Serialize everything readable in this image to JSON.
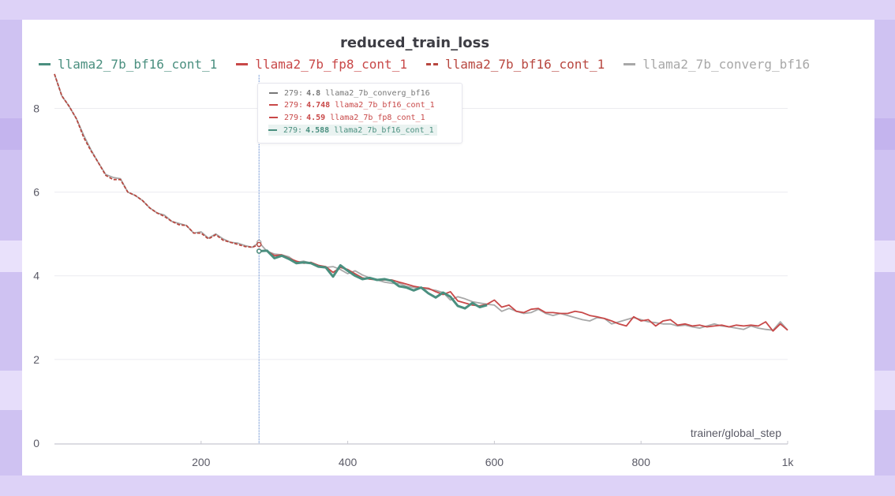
{
  "colors": {
    "teal": "#4a8f7f",
    "red": "#c84848",
    "red_dashed": "#b8473f",
    "gray": "#a8a8a8",
    "tooltip_gray": "#777777",
    "grid": "#ececf0",
    "axis_text": "#5a5a66"
  },
  "chart_data": {
    "type": "line",
    "title": "reduced_train_loss",
    "xlabel": "trainer/global_step",
    "ylabel": "",
    "xlim": [
      0,
      1000
    ],
    "ylim": [
      0,
      8.8
    ],
    "x_ticks": [
      200,
      400,
      600,
      800,
      1000
    ],
    "x_tick_labels": [
      "200",
      "400",
      "600",
      "800",
      "1k"
    ],
    "y_ticks": [
      0,
      2,
      4,
      6,
      8
    ],
    "y_tick_labels": [
      "0",
      "2",
      "4",
      "6",
      "8"
    ],
    "hover_step": 279,
    "series": [
      {
        "name": "llama2_7b_converg_bf16",
        "style": "solid",
        "color": "#a8a8a8",
        "x": [
          0,
          10,
          20,
          30,
          40,
          50,
          60,
          70,
          80,
          90,
          100,
          110,
          120,
          130,
          140,
          150,
          160,
          170,
          180,
          190,
          200,
          210,
          220,
          230,
          240,
          250,
          260,
          270,
          279,
          290,
          300,
          310,
          320,
          330,
          340,
          350,
          360,
          370,
          380,
          390,
          400,
          410,
          420,
          430,
          440,
          450,
          460,
          470,
          480,
          490,
          500,
          510,
          520,
          530,
          540,
          550,
          560,
          570,
          580,
          590,
          600,
          610,
          620,
          630,
          640,
          650,
          660,
          670,
          680,
          690,
          700,
          710,
          720,
          730,
          740,
          750,
          760,
          770,
          780,
          790,
          800,
          810,
          820,
          830,
          840,
          850,
          860,
          870,
          880,
          890,
          900,
          910,
          920,
          930,
          940,
          950,
          960,
          970,
          980,
          990,
          1000
        ],
        "values": [
          8.82,
          8.3,
          8.05,
          7.75,
          7.35,
          7.0,
          6.7,
          6.42,
          6.35,
          6.32,
          6.0,
          5.92,
          5.8,
          5.62,
          5.5,
          5.45,
          5.3,
          5.25,
          5.2,
          5.02,
          5.05,
          4.9,
          5.0,
          4.88,
          4.8,
          4.78,
          4.72,
          4.68,
          4.8,
          4.58,
          4.52,
          4.5,
          4.45,
          4.32,
          4.35,
          4.3,
          4.25,
          4.2,
          4.22,
          4.15,
          4.05,
          4.12,
          4.02,
          3.95,
          3.9,
          3.85,
          3.82,
          3.82,
          3.75,
          3.72,
          3.7,
          3.68,
          3.65,
          3.6,
          3.42,
          3.5,
          3.45,
          3.38,
          3.35,
          3.32,
          3.3,
          3.15,
          3.22,
          3.15,
          3.1,
          3.12,
          3.2,
          3.1,
          3.05,
          3.1,
          3.05,
          3.0,
          2.95,
          2.92,
          3.0,
          2.98,
          2.85,
          2.9,
          2.95,
          3.0,
          2.95,
          2.9,
          2.88,
          2.85,
          2.85,
          2.8,
          2.82,
          2.78,
          2.75,
          2.8,
          2.85,
          2.8,
          2.78,
          2.75,
          2.72,
          2.8,
          2.75,
          2.72,
          2.7,
          2.9,
          2.7
        ]
      },
      {
        "name": "llama2_7b_fp8_cont_1",
        "style": "solid",
        "color": "#c84848",
        "x": [
          279,
          290,
          300,
          310,
          320,
          330,
          340,
          350,
          360,
          370,
          380,
          390,
          400,
          410,
          420,
          430,
          440,
          450,
          460,
          470,
          480,
          490,
          500,
          510,
          520,
          530,
          540,
          550,
          560,
          570,
          580,
          590,
          600,
          610,
          620,
          630,
          640,
          650,
          660,
          670,
          680,
          690,
          700,
          710,
          720,
          730,
          740,
          750,
          760,
          770,
          780,
          790,
          800,
          810,
          820,
          830,
          840,
          850,
          860,
          870,
          880,
          890,
          900,
          910,
          920,
          930,
          940,
          950,
          960,
          970,
          980,
          990,
          1000
        ],
        "values": [
          4.59,
          4.6,
          4.48,
          4.5,
          4.42,
          4.35,
          4.3,
          4.32,
          4.25,
          4.22,
          4.08,
          4.2,
          4.15,
          4.05,
          3.95,
          3.92,
          3.9,
          3.9,
          3.9,
          3.85,
          3.8,
          3.75,
          3.72,
          3.7,
          3.62,
          3.55,
          3.62,
          3.4,
          3.35,
          3.3,
          3.28,
          3.32,
          3.42,
          3.25,
          3.3,
          3.15,
          3.12,
          3.2,
          3.22,
          3.12,
          3.12,
          3.1,
          3.1,
          3.15,
          3.12,
          3.05,
          3.02,
          2.98,
          2.92,
          2.85,
          2.8,
          3.02,
          2.92,
          2.95,
          2.8,
          2.92,
          2.95,
          2.82,
          2.85,
          2.8,
          2.82,
          2.78,
          2.8,
          2.82,
          2.78,
          2.82,
          2.8,
          2.82,
          2.8,
          2.9,
          2.68,
          2.85,
          2.7
        ]
      },
      {
        "name": "llama2_7b_bf16_cont_1",
        "style": "dashed",
        "color": "#b8473f",
        "x": [
          0,
          10,
          20,
          30,
          40,
          50,
          60,
          70,
          80,
          90,
          100,
          110,
          120,
          130,
          140,
          150,
          160,
          170,
          180,
          190,
          200,
          210,
          220,
          230,
          240,
          250,
          260,
          270,
          279
        ],
        "values": [
          8.82,
          8.3,
          8.05,
          7.75,
          7.3,
          6.98,
          6.7,
          6.4,
          6.3,
          6.3,
          6.0,
          5.92,
          5.8,
          5.62,
          5.5,
          5.42,
          5.3,
          5.22,
          5.2,
          5.02,
          5.02,
          4.88,
          4.98,
          4.85,
          4.8,
          4.75,
          4.7,
          4.68,
          4.748
        ]
      },
      {
        "name": "llama2_7b_bf16_cont_1",
        "style": "solid",
        "color": "#4a8f7f",
        "x": [
          279,
          290,
          300,
          310,
          320,
          330,
          340,
          350,
          360,
          370,
          380,
          390,
          400,
          410,
          420,
          430,
          440,
          450,
          460,
          470,
          480,
          490,
          500,
          510,
          520,
          530,
          540,
          550,
          560,
          570,
          580,
          590
        ],
        "values": [
          4.588,
          4.6,
          4.42,
          4.48,
          4.4,
          4.3,
          4.32,
          4.3,
          4.22,
          4.2,
          3.98,
          4.25,
          4.12,
          4.0,
          3.92,
          3.95,
          3.9,
          3.92,
          3.88,
          3.75,
          3.72,
          3.65,
          3.72,
          3.58,
          3.48,
          3.6,
          3.5,
          3.28,
          3.22,
          3.35,
          3.25,
          3.3
        ]
      }
    ],
    "legend": [
      {
        "label": "llama2_7b_bf16_cont_1",
        "style": "solid",
        "color": "#4a8f7f"
      },
      {
        "label": "llama2_7b_fp8_cont_1",
        "style": "solid",
        "color": "#c84848"
      },
      {
        "label": "llama2_7b_bf16_cont_1",
        "style": "dashed",
        "color": "#b8473f"
      },
      {
        "label": "llama2_7b_converg_bf16",
        "style": "solid",
        "color": "#a8a8a8"
      }
    ],
    "tooltip": [
      {
        "step": "279:",
        "value": "4.8",
        "label": "llama2_7b_converg_bf16",
        "style": "solid",
        "color": "#777777",
        "highlight": false
      },
      {
        "step": "279:",
        "value": "4.748",
        "label": "llama2_7b_bf16_cont_1",
        "style": "dashed",
        "color": "#c84848",
        "highlight": false
      },
      {
        "step": "279:",
        "value": "4.59",
        "label": "llama2_7b_fp8_cont_1",
        "style": "solid",
        "color": "#c84848",
        "highlight": false
      },
      {
        "step": "279:",
        "value": "4.588",
        "label": "llama2_7b_bf16_cont_1",
        "style": "solid",
        "color": "#4a8f7f",
        "highlight": true
      }
    ]
  }
}
